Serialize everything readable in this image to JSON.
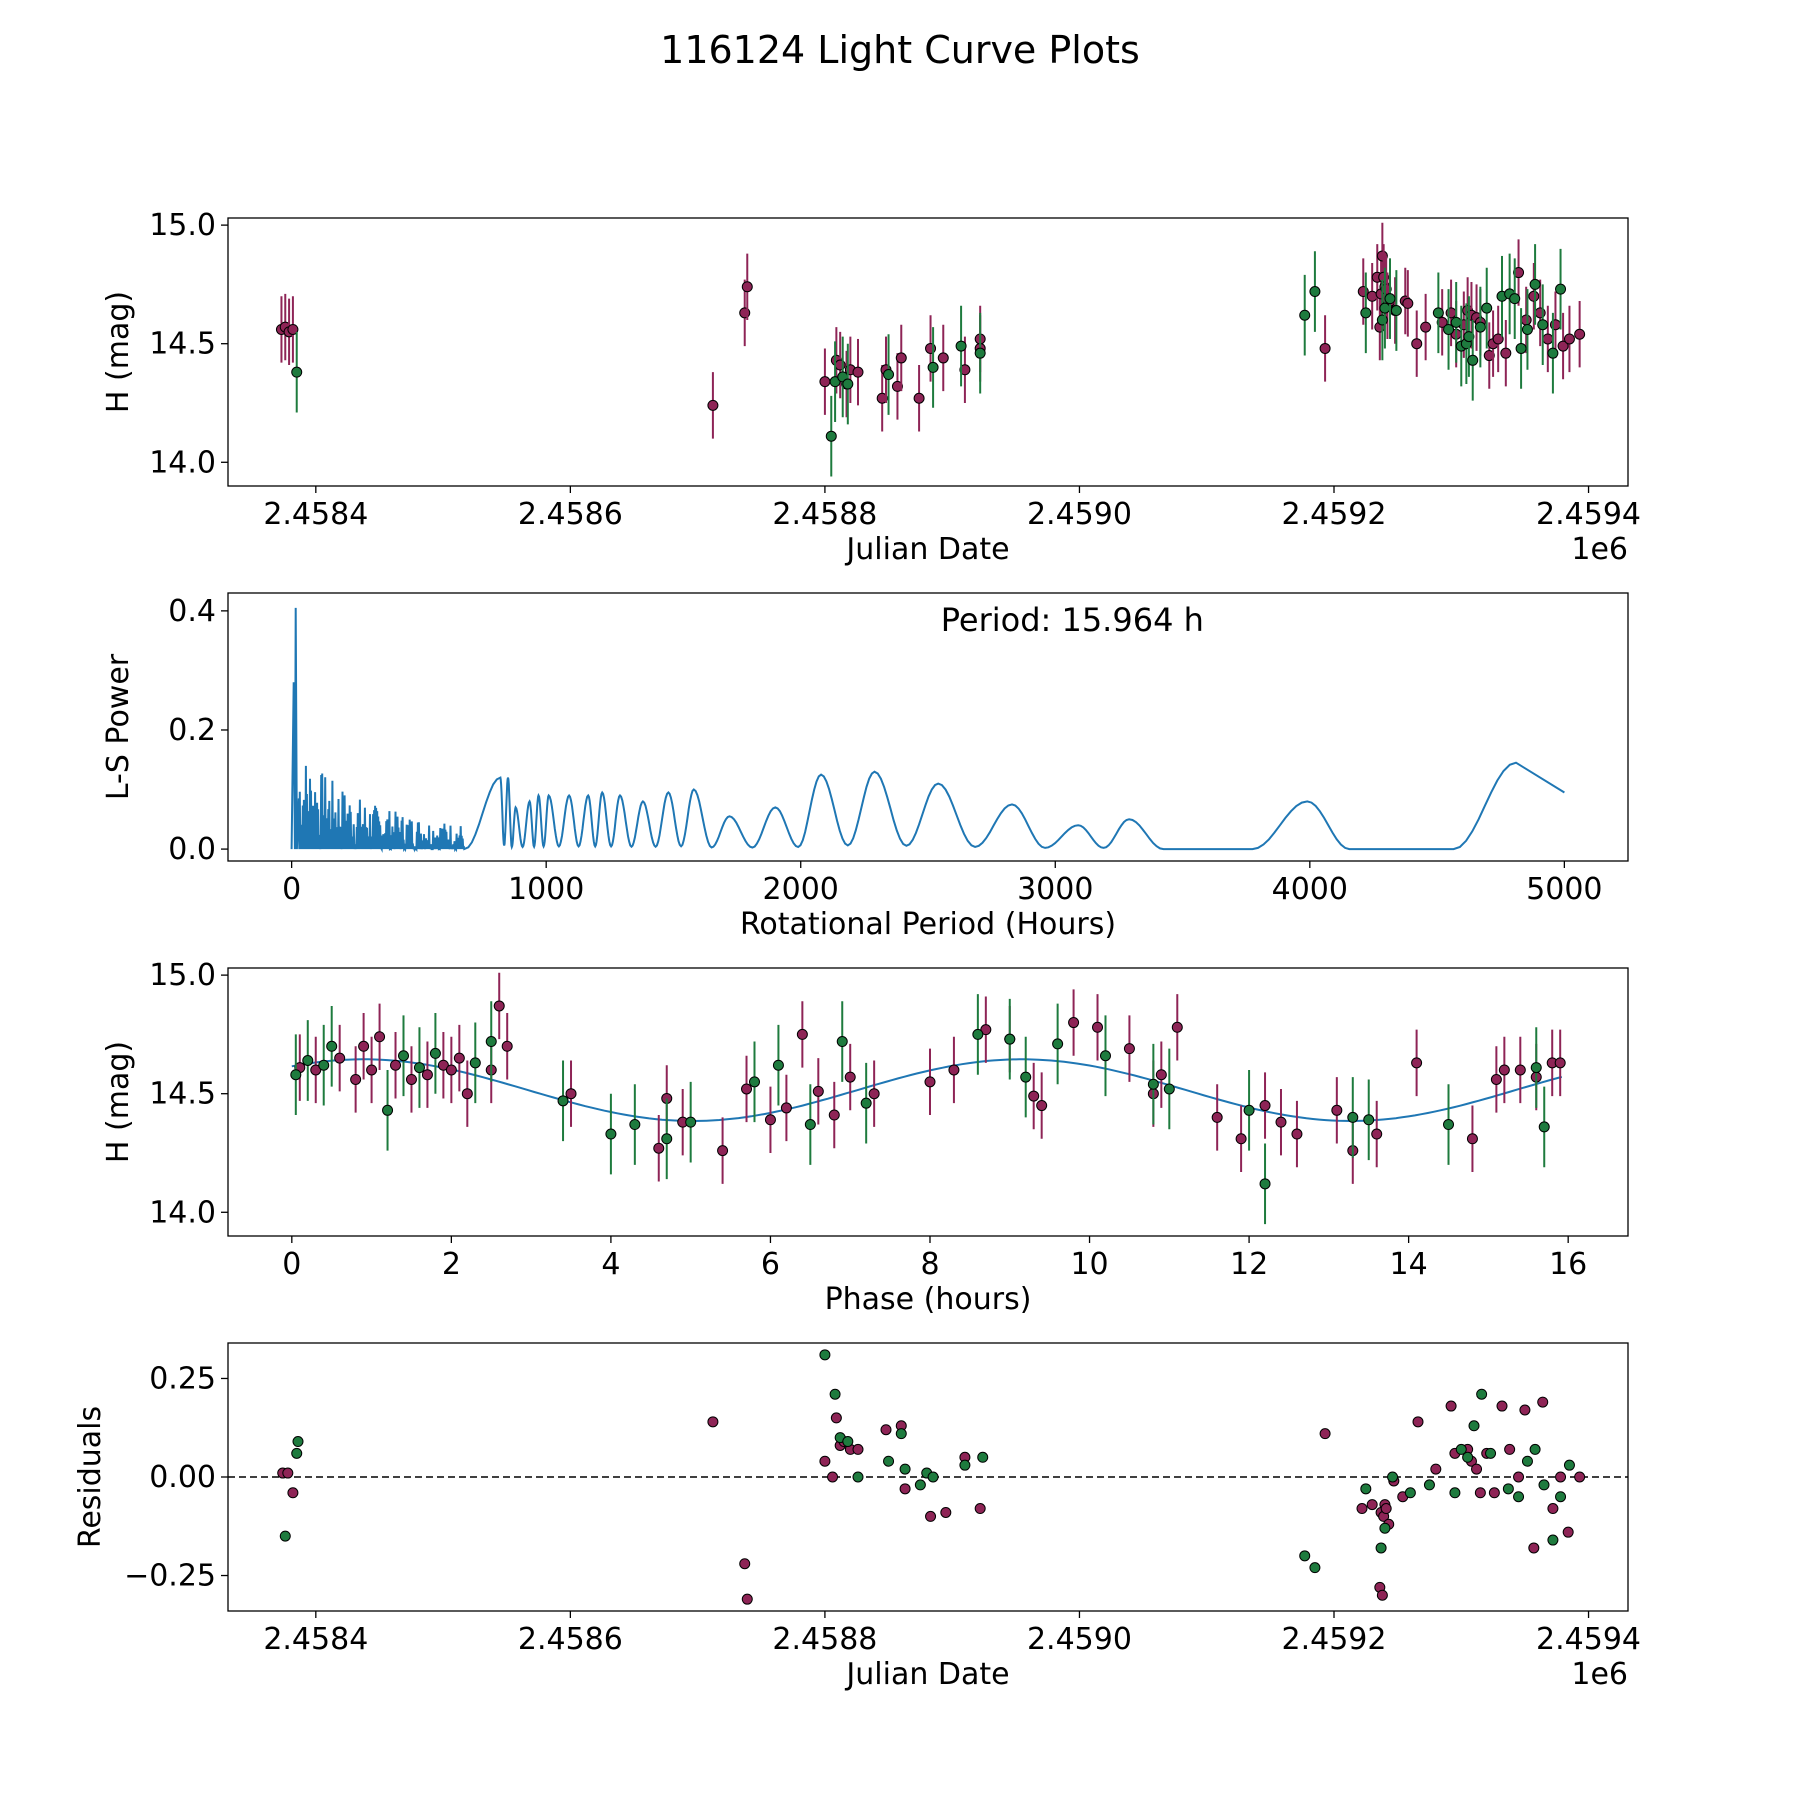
{
  "figure_title": "116124 Light Curve Plots",
  "colors": {
    "magenta": "#8e2456",
    "green": "#1e7b3e",
    "line": "#1f77b4",
    "edge": "#000000"
  },
  "chart_data": [
    {
      "id": "jd",
      "type": "scatter",
      "title": "",
      "xlabel": "Julian Date",
      "ylabel": "H (mag)",
      "xlim": [
        2458331,
        2459431
      ],
      "ylim": [
        13.9,
        15.03
      ],
      "x_offset_label": "1e6",
      "xticks": [
        2458400,
        2458600,
        2458800,
        2459000,
        2459200,
        2459400
      ],
      "xtick_labels": [
        "2.4584",
        "2.4586",
        "2.4588",
        "2.4590",
        "2.4592",
        "2.4594"
      ],
      "yticks": [
        14.0,
        14.5,
        15.0
      ],
      "ytick_labels": [
        "14.0",
        "14.5",
        "15.0"
      ],
      "series": [
        {
          "name": "magenta",
          "color": "magenta",
          "err": 0.14,
          "x": [
            2458373,
            2458376,
            2458379,
            2458382,
            2458712,
            2458737,
            2458739,
            2458800,
            2458809,
            2458812,
            2458817,
            2458820,
            2458826,
            2458845,
            2458848,
            2458857,
            2458860,
            2458874,
            2458883,
            2458893,
            2458910,
            2458922,
            2458922,
            2459193,
            2459223,
            2459230,
            2459234,
            2459236,
            2459237,
            2459238,
            2459239,
            2459240,
            2459241,
            2459242,
            2459244,
            2459248,
            2459256,
            2459258,
            2459265,
            2459272,
            2459285,
            2459292,
            2459296,
            2459302,
            2459305,
            2459308,
            2459312,
            2459315,
            2459322,
            2459325,
            2459329,
            2459335,
            2459345,
            2459351,
            2459357,
            2459362,
            2459368,
            2459374,
            2459380,
            2459385,
            2459393
          ],
          "y": [
            14.56,
            14.57,
            14.55,
            14.56,
            14.24,
            14.63,
            14.74,
            14.34,
            14.43,
            14.41,
            14.33,
            14.39,
            14.38,
            14.27,
            14.39,
            14.32,
            14.44,
            14.27,
            14.48,
            14.44,
            14.39,
            14.52,
            14.48,
            14.48,
            14.72,
            14.7,
            14.78,
            14.57,
            14.71,
            14.87,
            14.78,
            14.74,
            14.73,
            14.66,
            14.68,
            14.64,
            14.68,
            14.67,
            14.5,
            14.57,
            14.59,
            14.63,
            14.54,
            14.58,
            14.64,
            14.62,
            14.61,
            14.59,
            14.45,
            14.5,
            14.52,
            14.46,
            14.8,
            14.6,
            14.7,
            14.63,
            14.52,
            14.58,
            14.49,
            14.52,
            14.54
          ]
        },
        {
          "name": "green",
          "color": "green",
          "err": 0.17,
          "x": [
            2458385,
            2458805,
            2458808,
            2458814,
            2458818,
            2458850,
            2458885,
            2458907,
            2458922,
            2459177,
            2459185,
            2459225,
            2459238,
            2459240,
            2459244,
            2459249,
            2459282,
            2459290,
            2459296,
            2459300,
            2459304,
            2459306,
            2459309,
            2459315,
            2459320,
            2459332,
            2459338,
            2459342,
            2459347,
            2459352,
            2459358,
            2459364,
            2459372,
            2459378
          ],
          "y": [
            14.38,
            14.11,
            14.34,
            14.36,
            14.33,
            14.37,
            14.4,
            14.49,
            14.46,
            14.62,
            14.72,
            14.63,
            14.6,
            14.65,
            14.69,
            14.64,
            14.63,
            14.56,
            14.59,
            14.49,
            14.5,
            14.53,
            14.43,
            14.57,
            14.65,
            14.7,
            14.71,
            14.69,
            14.48,
            14.56,
            14.75,
            14.58,
            14.46,
            14.73
          ]
        }
      ]
    },
    {
      "id": "ls",
      "type": "line",
      "title": "",
      "annotation": "Period: 15.964 h",
      "xlabel": "Rotational Period (Hours)",
      "ylabel": "L-S Power",
      "xlim": [
        -250,
        5250
      ],
      "ylim": [
        -0.02,
        0.43
      ],
      "xticks": [
        0,
        1000,
        2000,
        3000,
        4000,
        5000
      ],
      "xtick_labels": [
        "0",
        "1000",
        "2000",
        "3000",
        "4000",
        "5000"
      ],
      "yticks": [
        0.0,
        0.2,
        0.4
      ],
      "ytick_labels": [
        "0.0",
        "0.2",
        "0.4"
      ],
      "peak_x": 15.964,
      "peak_y": 0.405,
      "lobes": [
        [
          820,
          0.12
        ],
        [
          850,
          0.12
        ],
        [
          880,
          0.07
        ],
        [
          935,
          0.08
        ],
        [
          970,
          0.09
        ],
        [
          1010,
          0.09
        ],
        [
          1090,
          0.09
        ],
        [
          1165,
          0.09
        ],
        [
          1220,
          0.095
        ],
        [
          1290,
          0.09
        ],
        [
          1380,
          0.08
        ],
        [
          1480,
          0.095
        ],
        [
          1580,
          0.1
        ],
        [
          1720,
          0.055
        ],
        [
          1900,
          0.07
        ],
        [
          2080,
          0.125
        ],
        [
          2290,
          0.13
        ],
        [
          2540,
          0.11
        ],
        [
          2830,
          0.075
        ],
        [
          3090,
          0.04
        ],
        [
          3290,
          0.05
        ],
        [
          3560,
          0.0
        ],
        [
          3990,
          0.08
        ],
        [
          4320,
          0.0
        ],
        [
          4810,
          0.145
        ]
      ],
      "end_point": [
        5000,
        0.095
      ]
    },
    {
      "id": "phase",
      "type": "scatter",
      "title": "",
      "xlabel": "Phase (hours)",
      "ylabel": "H (mag)",
      "xlim": [
        -0.8,
        16.75
      ],
      "ylim": [
        13.9,
        15.03
      ],
      "xticks": [
        0,
        2,
        4,
        6,
        8,
        10,
        12,
        14,
        16
      ],
      "xtick_labels": [
        "0",
        "2",
        "4",
        "6",
        "8",
        "10",
        "12",
        "14",
        "16"
      ],
      "yticks": [
        14.0,
        14.5,
        15.0
      ],
      "ytick_labels": [
        "14.0",
        "14.5",
        "15.0"
      ],
      "model": {
        "mean": 14.515,
        "amp": 0.13,
        "period": 8.25,
        "peak_phase": 0.9,
        "x_end": 15.96
      },
      "series": [
        {
          "name": "magenta",
          "color": "magenta",
          "err": 0.14,
          "x": [
            0.1,
            0.3,
            0.6,
            0.8,
            0.9,
            1.1,
            1.3,
            1.5,
            1.7,
            1.9,
            2.1,
            2.2,
            2.5,
            2.6,
            2.7,
            4.6,
            4.7,
            4.9,
            5.4,
            5.7,
            6.0,
            6.2,
            6.4,
            6.6,
            6.8,
            7.0,
            7.3,
            8.0,
            8.3,
            8.7,
            9.0,
            9.3,
            9.4,
            9.8,
            10.1,
            10.5,
            10.9,
            11.1,
            11.6,
            11.9,
            12.2,
            12.6,
            13.1,
            13.3,
            13.6,
            14.1,
            14.8,
            15.1,
            15.4,
            15.6,
            15.8,
            15.9,
            2.0,
            3.5,
            1.0,
            10.8,
            12.4,
            15.2
          ],
          "y": [
            14.61,
            14.6,
            14.65,
            14.56,
            14.7,
            14.74,
            14.62,
            14.56,
            14.58,
            14.62,
            14.65,
            14.5,
            14.6,
            14.87,
            14.7,
            14.27,
            14.48,
            14.38,
            14.26,
            14.52,
            14.39,
            14.44,
            14.75,
            14.51,
            14.41,
            14.57,
            14.5,
            14.55,
            14.6,
            14.77,
            14.73,
            14.49,
            14.45,
            14.8,
            14.78,
            14.69,
            14.58,
            14.78,
            14.4,
            14.31,
            14.45,
            14.33,
            14.43,
            14.26,
            14.33,
            14.63,
            14.31,
            14.56,
            14.6,
            14.57,
            14.63,
            14.63,
            14.6,
            14.5,
            14.6,
            14.5,
            14.38,
            14.6
          ]
        },
        {
          "name": "green",
          "color": "green",
          "err": 0.17,
          "x": [
            0.05,
            0.2,
            0.4,
            0.5,
            1.2,
            1.4,
            1.6,
            1.8,
            2.3,
            2.5,
            3.4,
            4.0,
            4.3,
            4.7,
            5.0,
            5.8,
            6.1,
            6.5,
            6.9,
            7.2,
            8.6,
            9.0,
            9.2,
            9.6,
            10.2,
            10.8,
            11.0,
            12.0,
            12.2,
            13.3,
            13.5,
            14.5,
            15.6,
            15.7
          ],
          "y": [
            14.58,
            14.64,
            14.62,
            14.7,
            14.43,
            14.66,
            14.61,
            14.67,
            14.63,
            14.72,
            14.47,
            14.33,
            14.37,
            14.31,
            14.38,
            14.55,
            14.62,
            14.37,
            14.72,
            14.46,
            14.75,
            14.73,
            14.57,
            14.71,
            14.66,
            14.54,
            14.52,
            14.43,
            14.12,
            14.4,
            14.39,
            14.37,
            14.61,
            14.36
          ]
        }
      ]
    },
    {
      "id": "res",
      "type": "scatter",
      "title": "",
      "xlabel": "Julian Date",
      "ylabel": "Residuals",
      "xlim": [
        2458331,
        2459431
      ],
      "ylim": [
        -0.34,
        0.34
      ],
      "x_offset_label": "1e6",
      "reference_line": 0,
      "xticks": [
        2458400,
        2458600,
        2458800,
        2459000,
        2459200,
        2459400
      ],
      "xtick_labels": [
        "2.4584",
        "2.4586",
        "2.4588",
        "2.4590",
        "2.4592",
        "2.4594"
      ],
      "yticks": [
        -0.25,
        0.0,
        0.25
      ],
      "ytick_labels": [
        "−0.25",
        "0.00",
        "0.25"
      ],
      "series": [
        {
          "name": "magenta",
          "color": "magenta",
          "err": 0,
          "x": [
            2458374,
            2458378,
            2458382,
            2458712,
            2458737,
            2458739,
            2458800,
            2458806,
            2458809,
            2458812,
            2458815,
            2458820,
            2458826,
            2458848,
            2458860,
            2458863,
            2458883,
            2458895,
            2458910,
            2458922,
            2459193,
            2459222,
            2459230,
            2459236,
            2459237,
            2459238,
            2459239,
            2459240,
            2459241,
            2459243,
            2459247,
            2459254,
            2459266,
            2459280,
            2459292,
            2459295,
            2459305,
            2459308,
            2459312,
            2459315,
            2459320,
            2459326,
            2459332,
            2459338,
            2459345,
            2459350,
            2459357,
            2459364,
            2459372,
            2459378,
            2459384,
            2459393
          ],
          "y": [
            0.01,
            0.01,
            -0.04,
            0.14,
            -0.22,
            -0.31,
            0.04,
            0.0,
            0.15,
            0.08,
            0.09,
            0.07,
            0.07,
            0.12,
            0.13,
            -0.03,
            -0.1,
            -0.09,
            0.05,
            -0.08,
            0.11,
            -0.08,
            -0.07,
            -0.28,
            -0.09,
            -0.3,
            -0.1,
            -0.07,
            -0.08,
            -0.12,
            -0.01,
            -0.05,
            0.14,
            0.02,
            0.18,
            0.06,
            0.07,
            0.04,
            0.02,
            -0.04,
            0.06,
            -0.04,
            0.18,
            0.07,
            0.0,
            0.17,
            -0.18,
            0.19,
            -0.08,
            0.0,
            -0.14,
            0.0
          ]
        },
        {
          "name": "green",
          "color": "green",
          "err": 0,
          "x": [
            2458376,
            2458385,
            2458386,
            2458800,
            2458808,
            2458812,
            2458818,
            2458826,
            2458850,
            2458860,
            2458863,
            2458875,
            2458880,
            2458885,
            2458910,
            2458924,
            2459177,
            2459185,
            2459225,
            2459237,
            2459240,
            2459246,
            2459260,
            2459275,
            2459295,
            2459300,
            2459305,
            2459310,
            2459316,
            2459323,
            2459337,
            2459345,
            2459352,
            2459358,
            2459365,
            2459372,
            2459378,
            2459385
          ],
          "y": [
            -0.15,
            0.06,
            0.09,
            0.31,
            0.21,
            0.1,
            0.09,
            0.0,
            0.04,
            0.11,
            0.02,
            -0.02,
            0.01,
            0.0,
            0.03,
            0.05,
            -0.2,
            -0.23,
            -0.03,
            -0.18,
            -0.13,
            0.0,
            -0.04,
            -0.02,
            -0.04,
            0.07,
            0.05,
            0.13,
            0.21,
            0.06,
            -0.03,
            -0.05,
            0.04,
            0.07,
            -0.02,
            -0.16,
            -0.05,
            0.03
          ]
        }
      ]
    }
  ]
}
